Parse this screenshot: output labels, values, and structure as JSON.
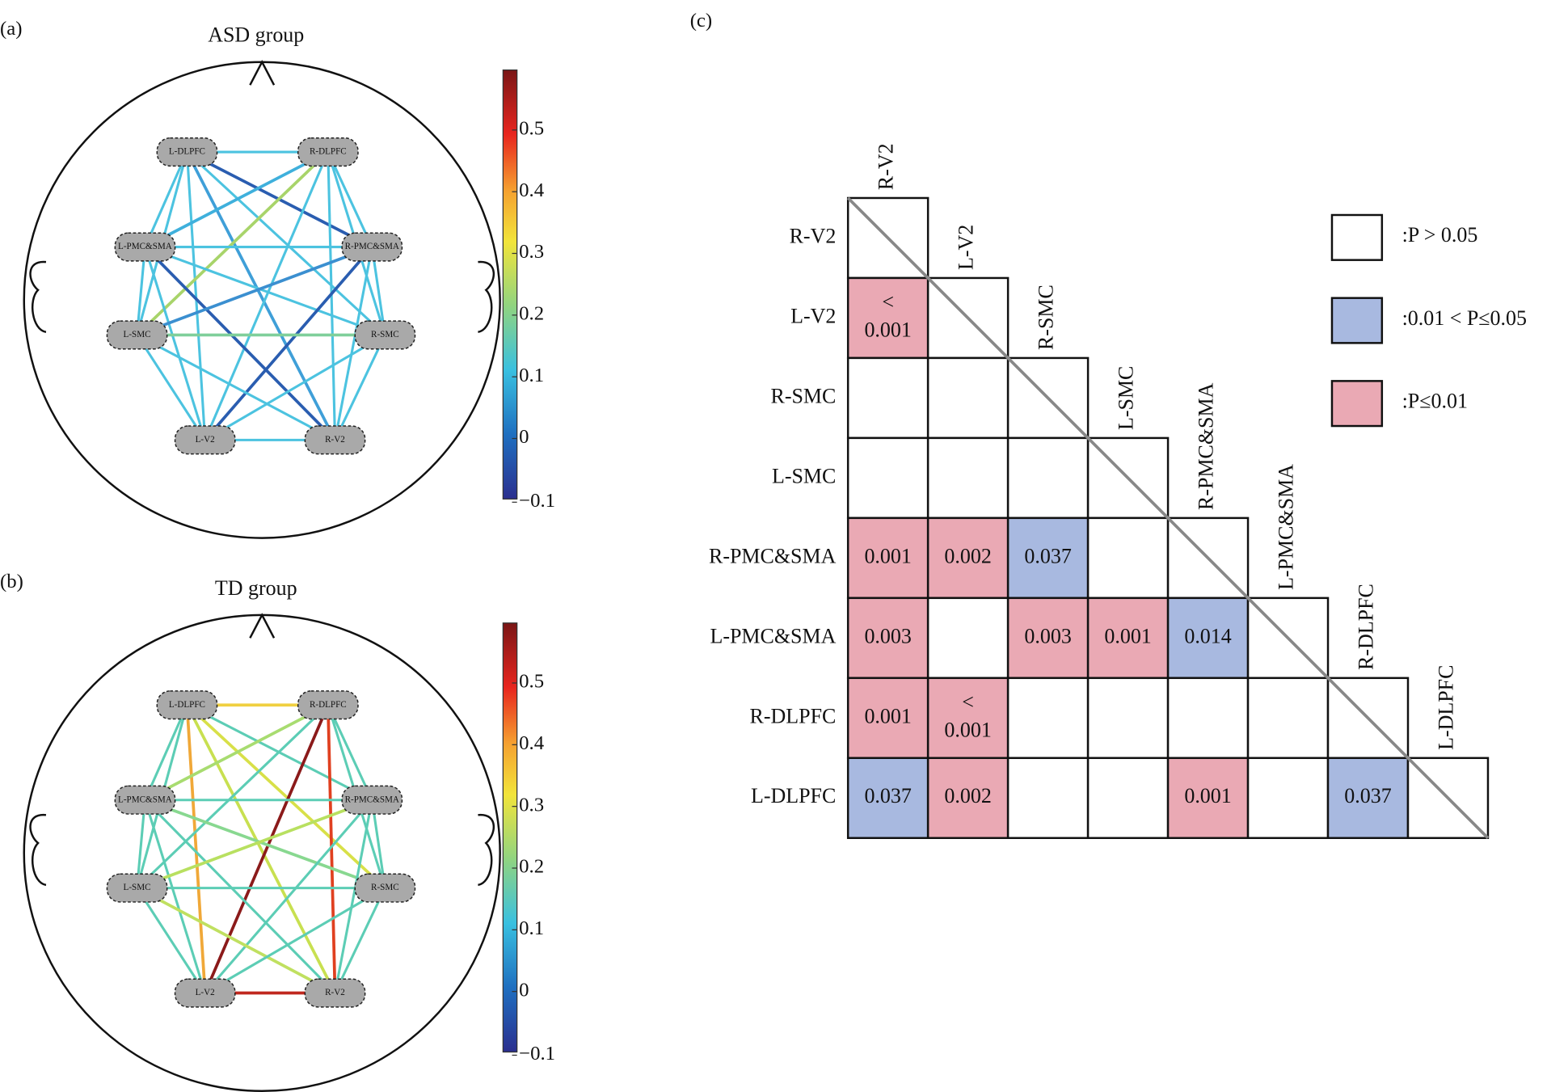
{
  "panels": [
    {
      "label": "(a)",
      "title": "ASD group",
      "nodes": [
        "L-DLPFC",
        "R-DLPFC",
        "L-PMC&SMA",
        "R-PMC&SMA",
        "L-SMC",
        "R-SMC",
        "L-V2",
        "R-V2"
      ],
      "colorbar_ticks": [
        "0.5",
        "0.4",
        "0.3",
        "0.2",
        "0.1",
        "0",
        "−0.1"
      ]
    },
    {
      "label": "(b)",
      "title": "TD group",
      "nodes": [
        "L-DLPFC",
        "R-DLPFC",
        "L-PMC&SMA",
        "R-PMC&SMA",
        "L-SMC",
        "R-SMC",
        "L-V2",
        "R-V2"
      ],
      "colorbar_ticks": [
        "0.5",
        "0.4",
        "0.3",
        "0.2",
        "0.1",
        "0",
        "−0.1"
      ]
    }
  ],
  "matrix": {
    "label": "(c)",
    "rows": [
      {
        "label": "R-V2",
        "cells": []
      },
      {
        "label": "L-V2",
        "cells": [
          {
            "text": [
              "<",
              "0.001"
            ],
            "color": "#eaa9b4"
          }
        ]
      },
      {
        "label": "R-SMC",
        "cells": [
          {
            "color": "#ffffff"
          },
          {
            "color": "#ffffff"
          }
        ]
      },
      {
        "label": "L-SMC",
        "cells": [
          {
            "color": "#ffffff"
          },
          {
            "color": "#ffffff"
          },
          {
            "color": "#ffffff"
          }
        ]
      },
      {
        "label": "R-PMC&SMA",
        "cells": [
          {
            "text": [
              "0.001"
            ],
            "color": "#eaa9b4"
          },
          {
            "text": [
              "0.002"
            ],
            "color": "#eaa9b4"
          },
          {
            "text": [
              "0.037"
            ],
            "color": "#a8b9e0"
          },
          {
            "color": "#ffffff"
          }
        ]
      },
      {
        "label": "L-PMC&SMA",
        "cells": [
          {
            "text": [
              "0.003"
            ],
            "color": "#eaa9b4"
          },
          {
            "color": "#ffffff"
          },
          {
            "text": [
              "0.003"
            ],
            "color": "#eaa9b4"
          },
          {
            "text": [
              "0.001"
            ],
            "color": "#eaa9b4"
          },
          {
            "text": [
              "0.014"
            ],
            "color": "#a8b9e0"
          }
        ]
      },
      {
        "label": "R-DLPFC",
        "cells": [
          {
            "text": [
              "0.001"
            ],
            "color": "#eaa9b4"
          },
          {
            "text": [
              "<",
              "0.001"
            ],
            "color": "#eaa9b4"
          },
          {
            "color": "#ffffff"
          },
          {
            "color": "#ffffff"
          },
          {
            "color": "#ffffff"
          },
          {
            "color": "#ffffff"
          }
        ]
      },
      {
        "label": "L-DLPFC",
        "cells": [
          {
            "text": [
              "0.037"
            ],
            "color": "#a8b9e0"
          },
          {
            "text": [
              "0.002"
            ],
            "color": "#eaa9b4"
          },
          {
            "color": "#ffffff"
          },
          {
            "color": "#ffffff"
          },
          {
            "text": [
              "0.001"
            ],
            "color": "#eaa9b4"
          },
          {
            "color": "#ffffff"
          },
          {
            "text": [
              "0.037"
            ],
            "color": "#a8b9e0"
          }
        ]
      }
    ],
    "legend": [
      {
        "label": ":P > 0.05",
        "color": "#ffffff"
      },
      {
        "label": ":0.01 < P≤0.05",
        "color": "#a8b9e0"
      },
      {
        "label": ":P≤0.01",
        "color": "#eaa9b4"
      }
    ]
  }
}
